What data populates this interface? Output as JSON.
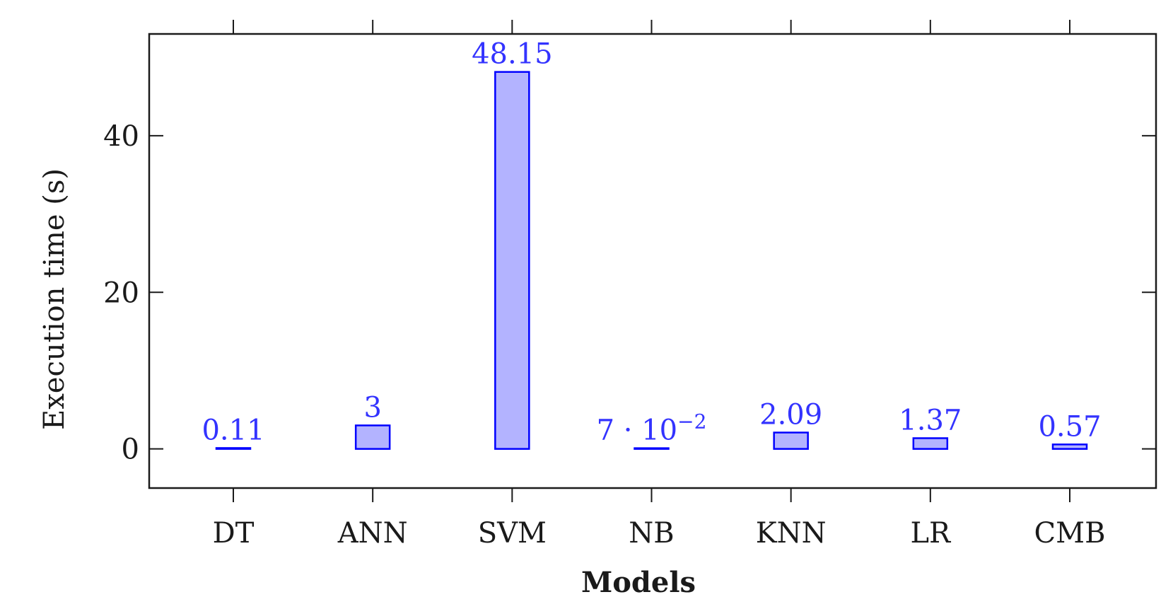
{
  "chart_data": {
    "type": "bar",
    "xlabel": "Models",
    "ylabel": "Execution time (s)",
    "categories": [
      "DT",
      "ANN",
      "SVM",
      "NB",
      "KNN",
      "LR",
      "CMB"
    ],
    "values": [
      0.11,
      3,
      48.15,
      0.07,
      2.09,
      1.37,
      0.57
    ],
    "value_labels": [
      "0.11",
      "3",
      "48.15",
      "7 · 10",
      "2.09",
      "1.37",
      "0.57"
    ],
    "value_label_exponents": [
      "",
      "",
      "",
      "−2",
      "",
      "",
      ""
    ],
    "y_ticks": [
      0,
      20,
      40
    ],
    "y_tick_labels": [
      "0",
      "20",
      "40"
    ],
    "ylim": [
      -5,
      53
    ],
    "grid": false,
    "legend": "none",
    "colors": {
      "bar_fill": "#b3b3ff",
      "bar_stroke": "#0000ff",
      "label_color": "#3333ff",
      "axis_color": "#1a1a1a"
    }
  }
}
